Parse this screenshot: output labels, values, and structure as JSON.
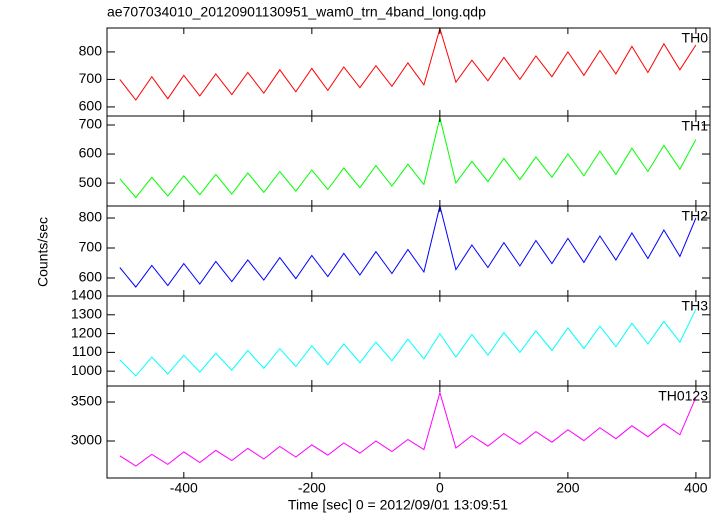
{
  "chart_data": {
    "type": "line",
    "title": "ae707034010_20120901130951_wam0_trn_4band_long.qdp",
    "x_label": "Time [sec] 0 = 2012/09/01 13:09:51",
    "y_label": "Counts/sec",
    "x": [
      -500,
      -475,
      -450,
      -425,
      -400,
      -375,
      -350,
      -325,
      -300,
      -275,
      -250,
      -225,
      -200,
      -175,
      -150,
      -125,
      -100,
      -75,
      -50,
      -25,
      0,
      25,
      50,
      75,
      100,
      125,
      150,
      175,
      200,
      225,
      250,
      275,
      300,
      325,
      350,
      375,
      400
    ],
    "xlim": [
      -520,
      422
    ],
    "xticks": [
      -400,
      -200,
      0,
      200,
      400
    ],
    "panels": [
      {
        "name": "TH0",
        "color": "#ff0000",
        "ylim": [
          567,
          887
        ],
        "yticks": [
          600,
          700,
          800
        ],
        "values": [
          700,
          625,
          710,
          630,
          715,
          640,
          720,
          645,
          725,
          650,
          735,
          655,
          740,
          660,
          745,
          670,
          750,
          675,
          760,
          680,
          885,
          690,
          770,
          695,
          780,
          700,
          785,
          710,
          800,
          715,
          805,
          720,
          820,
          725,
          830,
          735,
          825
        ]
      },
      {
        "name": "TH1",
        "color": "#00ff00",
        "ylim": [
          421,
          731
        ],
        "yticks": [
          500,
          600,
          700
        ],
        "values": [
          515,
          450,
          520,
          455,
          525,
          460,
          530,
          462,
          535,
          468,
          540,
          472,
          545,
          478,
          552,
          484,
          560,
          490,
          565,
          495,
          725,
          500,
          575,
          505,
          585,
          512,
          590,
          520,
          600,
          525,
          610,
          530,
          620,
          540,
          630,
          548,
          650
        ]
      },
      {
        "name": "TH2",
        "color": "#0000ff",
        "ylim": [
          540,
          840
        ],
        "yticks": [
          600,
          700,
          800
        ],
        "values": [
          635,
          570,
          642,
          575,
          648,
          580,
          655,
          588,
          660,
          593,
          668,
          598,
          675,
          605,
          682,
          610,
          688,
          615,
          695,
          620,
          840,
          628,
          710,
          635,
          718,
          640,
          725,
          648,
          732,
          652,
          740,
          660,
          750,
          665,
          760,
          672,
          800
        ]
      },
      {
        "name": "TH3",
        "color": "#00ffff",
        "ylim": [
          921,
          1400
        ],
        "yticks": [
          1000,
          1100,
          1200,
          1300,
          1400
        ],
        "values": [
          1060,
          975,
          1075,
          985,
          1085,
          995,
          1095,
          1005,
          1110,
          1015,
          1120,
          1025,
          1135,
          1035,
          1145,
          1045,
          1155,
          1055,
          1170,
          1065,
          1200,
          1075,
          1195,
          1085,
          1205,
          1100,
          1215,
          1110,
          1230,
          1120,
          1240,
          1130,
          1255,
          1145,
          1265,
          1155,
          1330
        ]
      },
      {
        "name": "TH0123",
        "color": "#ff00ff",
        "ylim": [
          2526,
          3705
        ],
        "yticks": [
          3000,
          3500
        ],
        "values": [
          2810,
          2680,
          2830,
          2700,
          2860,
          2725,
          2880,
          2750,
          2905,
          2770,
          2930,
          2795,
          2950,
          2820,
          2975,
          2845,
          3000,
          2865,
          3020,
          2890,
          3620,
          2910,
          3070,
          2935,
          3095,
          2960,
          3120,
          2985,
          3145,
          3005,
          3170,
          3030,
          3195,
          3055,
          3220,
          3080,
          3560
        ]
      }
    ]
  }
}
